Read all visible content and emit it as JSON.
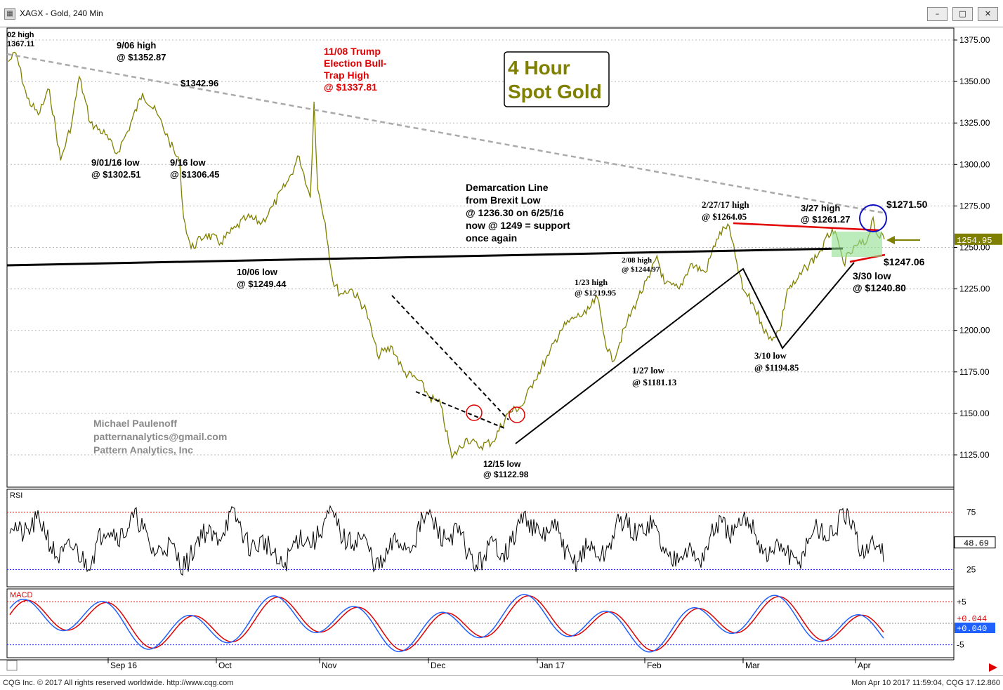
{
  "window": {
    "icon": "chart-app-icon",
    "title": "XAGX - Gold, 240 Min",
    "min_label": "–",
    "max_label": "□",
    "close_label": "✕"
  },
  "footer": {
    "copyright": "CQG Inc. © 2017 All rights reserved worldwide. http://www.cqg.com",
    "timestamp": "Mon Apr 10 2017 11:59:04, CQG 17.12.860"
  },
  "chart_data": [
    {
      "type": "line",
      "panel": "price",
      "title": "4 Hour\nSpot Gold",
      "ylim": [
        1110,
        1385
      ],
      "y_ticks": [
        "1375.00",
        "1350.00",
        "1325.00",
        "1300.00",
        "1275.00",
        "1250.00",
        "1225.00",
        "1200.00",
        "1175.00",
        "1150.00",
        "1125.00"
      ],
      "last_price": "1254.95",
      "x_labels": [
        "Sep 16",
        "Oct",
        "Nov",
        "Dec",
        "Jan 17",
        "Feb",
        "Mar",
        "Apr"
      ],
      "series": [
        {
          "values": [
            {
              "x": "2016-08-18",
              "y": 1362
            },
            {
              "x": "2016-08-20",
              "y": 1367.11
            },
            {
              "x": "2016-08-23",
              "y": 1340
            },
            {
              "x": "2016-08-26",
              "y": 1330
            },
            {
              "x": "2016-08-29",
              "y": 1345
            },
            {
              "x": "2016-09-01",
              "y": 1302.51
            },
            {
              "x": "2016-09-04",
              "y": 1325
            },
            {
              "x": "2016-09-06",
              "y": 1352.87
            },
            {
              "x": "2016-09-09",
              "y": 1325
            },
            {
              "x": "2016-09-13",
              "y": 1318
            },
            {
              "x": "2016-09-16",
              "y": 1306.45
            },
            {
              "x": "2016-09-19",
              "y": 1320
            },
            {
              "x": "2016-09-23",
              "y": 1342.96
            },
            {
              "x": "2016-09-27",
              "y": 1330
            },
            {
              "x": "2016-09-30",
              "y": 1315
            },
            {
              "x": "2016-10-03",
              "y": 1300
            },
            {
              "x": "2016-10-04",
              "y": 1268
            },
            {
              "x": "2016-10-06",
              "y": 1249.44
            },
            {
              "x": "2016-10-10",
              "y": 1258
            },
            {
              "x": "2016-10-14",
              "y": 1253
            },
            {
              "x": "2016-10-18",
              "y": 1262
            },
            {
              "x": "2016-10-21",
              "y": 1268
            },
            {
              "x": "2016-10-25",
              "y": 1265
            },
            {
              "x": "2016-10-28",
              "y": 1275
            },
            {
              "x": "2016-11-01",
              "y": 1290
            },
            {
              "x": "2016-11-04",
              "y": 1305
            },
            {
              "x": "2016-11-07",
              "y": 1280
            },
            {
              "x": "2016-11-08",
              "y": 1337.81
            },
            {
              "x": "2016-11-09",
              "y": 1285
            },
            {
              "x": "2016-11-11",
              "y": 1265
            },
            {
              "x": "2016-11-13",
              "y": 1230
            },
            {
              "x": "2016-11-15",
              "y": 1222
            },
            {
              "x": "2016-11-18",
              "y": 1225
            },
            {
              "x": "2016-11-22",
              "y": 1212
            },
            {
              "x": "2016-11-25",
              "y": 1185
            },
            {
              "x": "2016-11-29",
              "y": 1190
            },
            {
              "x": "2016-12-02",
              "y": 1175
            },
            {
              "x": "2016-12-06",
              "y": 1170
            },
            {
              "x": "2016-12-09",
              "y": 1160
            },
            {
              "x": "2016-12-12",
              "y": 1155
            },
            {
              "x": "2016-12-15",
              "y": 1122.98
            },
            {
              "x": "2016-12-19",
              "y": 1135
            },
            {
              "x": "2016-12-22",
              "y": 1130
            },
            {
              "x": "2016-12-26",
              "y": 1133
            },
            {
              "x": "2016-12-30",
              "y": 1150
            },
            {
              "x": "2017-01-03",
              "y": 1155
            },
            {
              "x": "2017-01-06",
              "y": 1170
            },
            {
              "x": "2017-01-10",
              "y": 1185
            },
            {
              "x": "2017-01-13",
              "y": 1200
            },
            {
              "x": "2017-01-17",
              "y": 1208
            },
            {
              "x": "2017-01-20",
              "y": 1210
            },
            {
              "x": "2017-01-23",
              "y": 1219.95
            },
            {
              "x": "2017-01-25",
              "y": 1195
            },
            {
              "x": "2017-01-27",
              "y": 1181.13
            },
            {
              "x": "2017-01-31",
              "y": 1205
            },
            {
              "x": "2017-02-03",
              "y": 1220
            },
            {
              "x": "2017-02-06",
              "y": 1232
            },
            {
              "x": "2017-02-08",
              "y": 1244.97
            },
            {
              "x": "2017-02-10",
              "y": 1228
            },
            {
              "x": "2017-02-14",
              "y": 1225
            },
            {
              "x": "2017-02-17",
              "y": 1240
            },
            {
              "x": "2017-02-21",
              "y": 1235
            },
            {
              "x": "2017-02-24",
              "y": 1255
            },
            {
              "x": "2017-02-27",
              "y": 1264.05
            },
            {
              "x": "2017-03-01",
              "y": 1245
            },
            {
              "x": "2017-03-03",
              "y": 1225
            },
            {
              "x": "2017-03-06",
              "y": 1215
            },
            {
              "x": "2017-03-08",
              "y": 1205
            },
            {
              "x": "2017-03-10",
              "y": 1194.85
            },
            {
              "x": "2017-03-13",
              "y": 1200
            },
            {
              "x": "2017-03-15",
              "y": 1225
            },
            {
              "x": "2017-03-17",
              "y": 1228
            },
            {
              "x": "2017-03-20",
              "y": 1238
            },
            {
              "x": "2017-03-24",
              "y": 1248
            },
            {
              "x": "2017-03-27",
              "y": 1261.27
            },
            {
              "x": "2017-03-29",
              "y": 1250
            },
            {
              "x": "2017-03-30",
              "y": 1240.8
            },
            {
              "x": "2017-04-03",
              "y": 1252
            },
            {
              "x": "2017-04-05",
              "y": 1252
            },
            {
              "x": "2017-04-07",
              "y": 1268
            },
            {
              "x": "2017-04-08",
              "y": 1258
            },
            {
              "x": "2017-04-10",
              "y": 1254.95
            }
          ]
        }
      ],
      "annotations": [
        {
          "text": "02 high\n1367.11",
          "color": "#000000"
        },
        {
          "text": "9/06 high\n@ $1352.87",
          "color": "#000000"
        },
        {
          "text": "$1342.96",
          "color": "#000000"
        },
        {
          "text": "9/01/16 low\n@ $1302.51",
          "color": "#000000"
        },
        {
          "text": "9/16 low\n@ $1306.45",
          "color": "#000000"
        },
        {
          "text": "11/08 Trump\nElection Bull-\nTrap High\n@ $1337.81",
          "color": "#e00000"
        },
        {
          "text": "10/06 low\n@ $1249.44",
          "color": "#000000"
        },
        {
          "text": "Demarcation Line\nfrom Brexit Low\n@ 1236.30 on 6/25/16\nnow @ 1249 = support\nonce again",
          "color": "#000000"
        },
        {
          "text": "2/27/17 high\n@ $1264.05",
          "color": "#000000"
        },
        {
          "text": "3/27 high\n@ $1261.27",
          "color": "#000000"
        },
        {
          "text": "$1271.50",
          "color": "#000000"
        },
        {
          "text": "$1247.06",
          "color": "#000000"
        },
        {
          "text": "3/30 low\n@ $1240.80",
          "color": "#000000"
        },
        {
          "text": "2/08 high\n@ $1244.97",
          "color": "#000000"
        },
        {
          "text": "1/23 high\n@ $1219.95",
          "color": "#000000"
        },
        {
          "text": "1/27 low\n@ $1181.13",
          "color": "#000000"
        },
        {
          "text": "3/10 low\n@ $1194.85",
          "color": "#000000"
        },
        {
          "text": "12/15 low\n@ $1122.98",
          "color": "#000000"
        },
        {
          "text": "Michael Paulenoff\npatternanalytics@gmail.com\nPattern Analytics, Inc",
          "color": "#8a8a8a"
        }
      ],
      "colors": {
        "price": "#808000",
        "trend": "#000000",
        "resistance": "#e00000",
        "downtrend": "#aaaaaa",
        "marker_circle": "#e00000",
        "highlight_circle": "#1010c0",
        "box_fill": "#8fe08f"
      }
    },
    {
      "type": "line",
      "panel": "rsi",
      "label": "RSI",
      "ylim": [
        10,
        95
      ],
      "y_ticks": [
        "75",
        "25"
      ],
      "levels": [
        75,
        25
      ],
      "last_value": "48.69",
      "colors": {
        "line": "#000000",
        "upper": "#e00000",
        "lower": "#2020ff"
      }
    },
    {
      "type": "line",
      "panel": "macd",
      "label": "MACD",
      "ylim": [
        -8,
        8
      ],
      "y_ticks": [
        "+5",
        "-5"
      ],
      "last_value": "+0.040",
      "other_value": "+0.044",
      "colors": {
        "macd": "#2060ff",
        "signal": "#e00000"
      }
    }
  ]
}
